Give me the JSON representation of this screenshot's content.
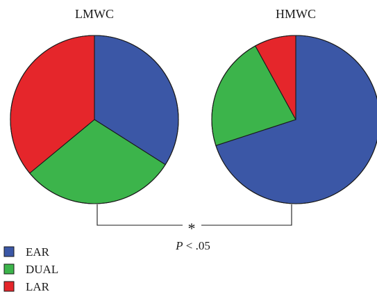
{
  "chart_data": {
    "type": "pie",
    "categories": [
      "EAR",
      "DUAL",
      "LAR"
    ],
    "colors": {
      "EAR": "#3b57a6",
      "DUAL": "#3cb44b",
      "LAR": "#e5262b"
    },
    "pies": [
      {
        "title": "LMWC",
        "values": [
          34,
          30,
          36
        ]
      },
      {
        "title": "HMWC",
        "values": [
          70,
          22,
          8
        ]
      }
    ],
    "legend": {
      "placement": "bottom-left",
      "entries": [
        "EAR",
        "DUAL",
        "LAR"
      ]
    },
    "significance": {
      "marker": "*",
      "p_prefix": "P",
      "p_rest": " < .05"
    }
  }
}
